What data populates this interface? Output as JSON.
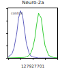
{
  "chart_data": {
    "type": "line",
    "title": "Neuro-2a",
    "annotations": [
      "control",
      "127927701"
    ],
    "x": [
      1,
      2,
      3,
      5,
      7,
      10,
      15,
      20,
      30,
      50,
      70,
      100,
      150,
      200,
      300,
      500,
      700,
      1000,
      2000,
      5000,
      10000
    ],
    "series": [
      {
        "color": "#6060c0",
        "values": [
          2,
          8,
          20,
          50,
          80,
          95,
          85,
          60,
          30,
          10,
          4,
          2,
          1,
          0,
          0,
          0,
          0,
          0,
          0,
          0,
          0
        ]
      },
      {
        "color": "#32cd32",
        "values": [
          0,
          0,
          0,
          0,
          0,
          0,
          0,
          1,
          2,
          5,
          10,
          20,
          40,
          65,
          90,
          80,
          50,
          25,
          5,
          1,
          0
        ]
      }
    ],
    "log": "x",
    "xlim": [
      1,
      10000
    ],
    "xticks": [
      1,
      10,
      100,
      1000,
      10000
    ],
    "ylim": [
      0,
      100
    ],
    "yticks": [
      0,
      25,
      50,
      75,
      100
    ],
    "grid": false,
    "tick_labels": false
  }
}
